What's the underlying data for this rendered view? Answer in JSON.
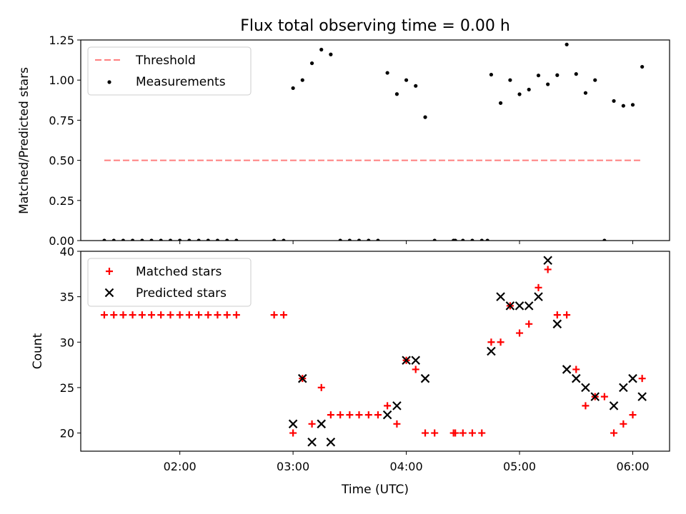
{
  "chart_data": [
    {
      "type": "scatter",
      "title": "Flux total observing time = 0.00 h",
      "xlabel": "",
      "ylabel": "Matched/Predicted stars",
      "xlim": [
        1.125,
        6.325
      ],
      "ylim": [
        0.0,
        1.25
      ],
      "yticks": [
        0.0,
        0.25,
        0.5,
        0.75,
        1.0,
        1.25
      ],
      "ytick_labels": [
        "0.00",
        "0.25",
        "0.50",
        "0.75",
        "1.00",
        "1.25"
      ],
      "xticks": [
        2,
        3,
        4,
        5,
        6
      ],
      "legend_position": "top-left",
      "series": [
        {
          "name": "Threshold",
          "kind": "dashed-line",
          "color": "#ff7f7f",
          "x": [
            1.333,
            6.083
          ],
          "y": [
            0.5,
            0.5
          ]
        },
        {
          "name": "Measurements",
          "kind": "dots",
          "color": "#000000",
          "x": [
            1.333,
            1.417,
            1.5,
            1.583,
            1.667,
            1.75,
            1.833,
            1.917,
            2.0,
            2.083,
            2.167,
            2.25,
            2.333,
            2.417,
            2.5,
            2.833,
            2.917,
            3.0,
            3.083,
            3.167,
            3.25,
            3.333,
            3.417,
            3.5,
            3.583,
            3.667,
            3.75,
            3.833,
            3.917,
            4.0,
            4.083,
            4.167,
            4.25,
            4.417,
            4.433,
            4.5,
            4.583,
            4.667,
            4.717,
            4.75,
            4.833,
            4.917,
            5.0,
            5.083,
            5.167,
            5.25,
            5.333,
            5.417,
            5.5,
            5.583,
            5.667,
            5.75,
            5.833,
            5.917,
            6.0,
            6.083
          ],
          "y": [
            0,
            0,
            0,
            0,
            0,
            0,
            0,
            0,
            0,
            0,
            0,
            0,
            0,
            0,
            0,
            0,
            0,
            0.95,
            1.0,
            1.105,
            1.19,
            1.16,
            0,
            0,
            0,
            0,
            0,
            1.045,
            0.913,
            1.0,
            0.964,
            0.769,
            0,
            0,
            0,
            0,
            0,
            0,
            0,
            1.034,
            0.857,
            1.0,
            0.912,
            0.941,
            1.029,
            0.974,
            1.031,
            1.222,
            1.038,
            0.92,
            1.0,
            0,
            0.87,
            0.84,
            0.846,
            1.083
          ]
        }
      ]
    },
    {
      "type": "scatter",
      "title": "",
      "xlabel": "Time (UTC)",
      "ylabel": "Count",
      "xlim": [
        1.125,
        6.325
      ],
      "ylim": [
        18,
        40
      ],
      "yticks": [
        20,
        25,
        30,
        35,
        40
      ],
      "ytick_labels": [
        "20",
        "25",
        "30",
        "35",
        "40"
      ],
      "xticks": [
        2,
        3,
        4,
        5,
        6
      ],
      "xtick_labels": [
        "02:00",
        "03:00",
        "04:00",
        "05:00",
        "06:00"
      ],
      "legend_position": "top-left",
      "series": [
        {
          "name": "Matched stars",
          "kind": "plus",
          "color": "#ff0000",
          "x": [
            1.333,
            1.417,
            1.5,
            1.583,
            1.667,
            1.75,
            1.833,
            1.917,
            2.0,
            2.083,
            2.167,
            2.25,
            2.333,
            2.417,
            2.5,
            2.833,
            2.917,
            3.0,
            3.083,
            3.167,
            3.25,
            3.333,
            3.417,
            3.5,
            3.583,
            3.667,
            3.75,
            3.833,
            3.917,
            4.0,
            4.083,
            4.167,
            4.25,
            4.417,
            4.433,
            4.5,
            4.583,
            4.667,
            4.75,
            4.833,
            4.917,
            5.0,
            5.083,
            5.167,
            5.25,
            5.333,
            5.417,
            5.5,
            5.583,
            5.667,
            5.75,
            5.833,
            5.917,
            6.0,
            6.083
          ],
          "y": [
            33,
            33,
            33,
            33,
            33,
            33,
            33,
            33,
            33,
            33,
            33,
            33,
            33,
            33,
            33,
            33,
            33,
            20,
            26,
            21,
            25,
            22,
            22,
            22,
            22,
            22,
            22,
            23,
            21,
            28,
            27,
            20,
            20,
            20,
            20,
            20,
            20,
            20,
            30,
            30,
            34,
            31,
            32,
            36,
            38,
            33,
            33,
            27,
            23,
            24,
            24,
            20,
            21,
            22,
            26
          ]
        },
        {
          "name": "Predicted stars",
          "kind": "x",
          "color": "#000000",
          "x": [
            3.0,
            3.083,
            3.167,
            3.25,
            3.333,
            3.833,
            3.917,
            4.0,
            4.083,
            4.167,
            4.75,
            4.833,
            4.917,
            5.0,
            5.083,
            5.167,
            5.25,
            5.333,
            5.417,
            5.5,
            5.583,
            5.667,
            5.833,
            5.917,
            6.0,
            6.083
          ],
          "y": [
            21,
            26,
            19,
            21,
            19,
            22,
            23,
            28,
            28,
            26,
            29,
            35,
            34,
            34,
            34,
            35,
            39,
            32,
            27,
            26,
            25,
            24,
            23,
            25,
            26,
            24
          ]
        }
      ]
    }
  ]
}
